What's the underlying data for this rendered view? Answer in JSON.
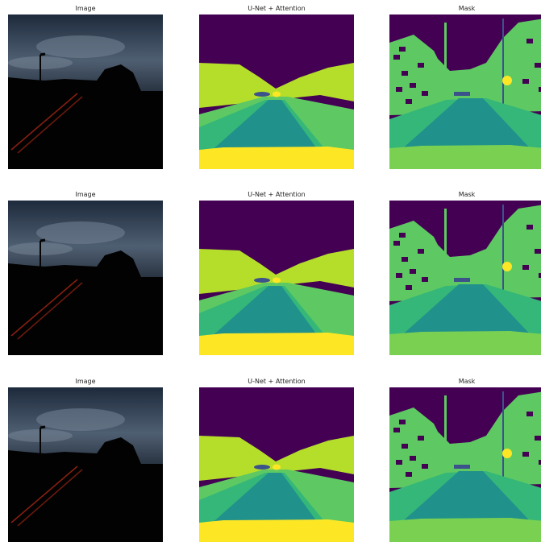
{
  "grid": [
    [
      "Image",
      "U-Net + Attention",
      "Mask"
    ],
    [
      "Image",
      "U-Net + Attention",
      "Mask"
    ],
    [
      "Image",
      "U-Net + Attention",
      "Mask"
    ]
  ]
}
